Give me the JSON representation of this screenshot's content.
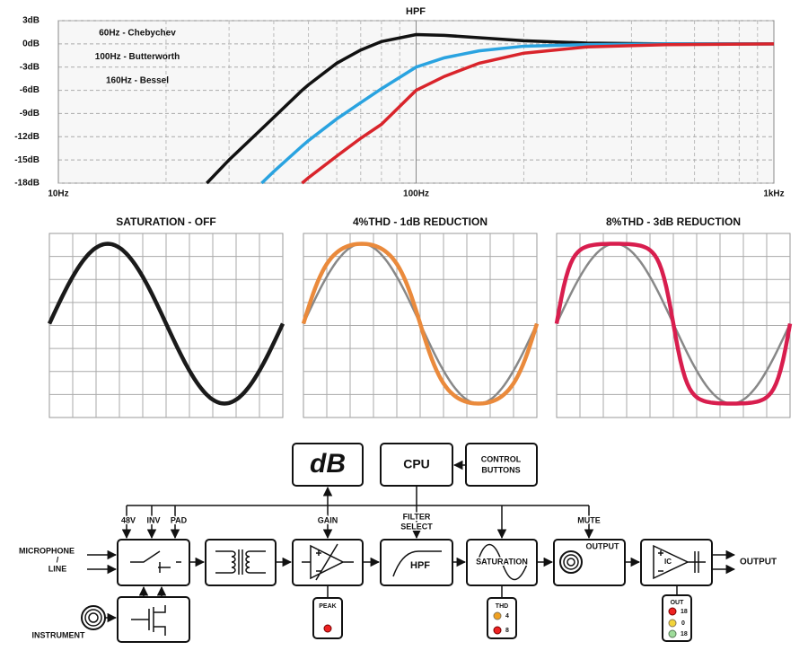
{
  "chart_data": {
    "type": "line",
    "title": "HPF",
    "x": [
      26,
      30,
      37,
      40,
      48,
      50,
      60,
      70,
      80,
      100,
      120,
      150,
      200,
      300,
      500,
      1000
    ],
    "xlim": [
      10,
      1000
    ],
    "xscale": "log",
    "xticks": [
      {
        "value": 10,
        "label": "10Hz"
      },
      {
        "value": 100,
        "label": "100Hz"
      },
      {
        "value": 1000,
        "label": "1kHz"
      }
    ],
    "ylim": [
      -18,
      3
    ],
    "yticks": [
      {
        "value": -18,
        "label": "-18dB"
      },
      {
        "value": -15,
        "label": "-15dB"
      },
      {
        "value": -12,
        "label": "-12dB"
      },
      {
        "value": -9,
        "label": "-9dB"
      },
      {
        "value": -6,
        "label": "-6dB"
      },
      {
        "value": -3,
        "label": "-3dB"
      },
      {
        "value": 0,
        "label": "0dB"
      },
      {
        "value": 3,
        "label": "3dB"
      }
    ],
    "grid": true,
    "series": [
      {
        "name": "60Hz - Chebychev",
        "color": "#111111",
        "values": [
          -18,
          -15,
          -11,
          -9.5,
          -6,
          -5.3,
          -2.5,
          -0.8,
          0.3,
          1.2,
          1.1,
          0.8,
          0.4,
          0.1,
          0,
          0
        ]
      },
      {
        "name": "100Hz - Butterworth",
        "color": "#2aa3e0",
        "values": [
          null,
          null,
          -18,
          -16.5,
          -13.2,
          -12.5,
          -9.7,
          -7.6,
          -5.8,
          -3,
          -1.8,
          -0.9,
          -0.3,
          -0.1,
          0,
          0
        ]
      },
      {
        "name": "160Hz - Bessel",
        "color": "#d9242b",
        "values": [
          null,
          null,
          null,
          null,
          -18,
          -17.3,
          -14.5,
          -12.2,
          -10.4,
          -6,
          -4.2,
          -2.5,
          -1.2,
          -0.4,
          -0.1,
          0
        ]
      }
    ]
  },
  "saturation_panels": [
    {
      "title": "SATURATION - OFF",
      "color": "#1a1a1a"
    },
    {
      "title": "4%THD - 1dB REDUCTION",
      "color": "#ea8a3c"
    },
    {
      "title": "8%THD - 3dB REDUCTION",
      "color": "#d81e4e"
    }
  ],
  "diagram": {
    "display": "dB",
    "cpu": "CPU",
    "control": [
      "CONTROL",
      "BUTTONS"
    ],
    "controls": {
      "phantom": "48V",
      "invert": "INV",
      "pad": "PAD",
      "gain": "GAIN",
      "filter_select": [
        "FILTER",
        "SELECT"
      ],
      "mute": "MUTE"
    },
    "inputs": {
      "mic": [
        "MICROPHONE",
        "/",
        "LINE"
      ],
      "instrument": "INSTRUMENT"
    },
    "blocks": {
      "hpf": "HPF",
      "saturation": "SATURATION",
      "mute_output": "OUTPUT",
      "ic": "IC"
    },
    "output": "OUTPUT",
    "indicators": {
      "peak": "PEAK",
      "thd": {
        "title": "THD",
        "levels": [
          "4",
          "8"
        ]
      },
      "out": {
        "title": "OUT",
        "levels": [
          "18",
          "0",
          "18"
        ]
      }
    }
  }
}
